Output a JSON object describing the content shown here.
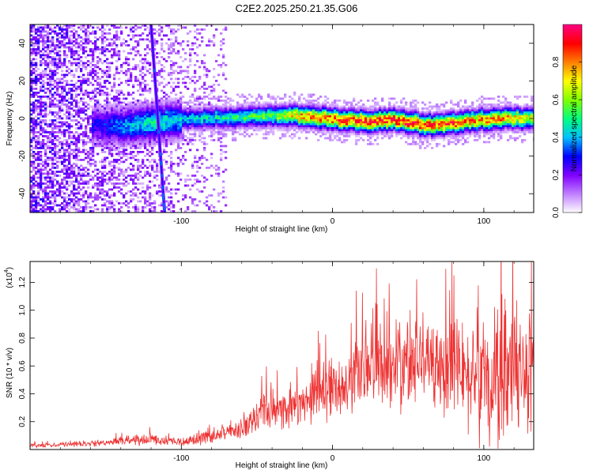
{
  "title": "C2E2.2025.250.21.35.G06",
  "chart_data": [
    {
      "type": "heatmap",
      "xlabel": "Height of straight line (km)",
      "ylabel": "Frequency (Hz)",
      "xlim": [
        -200,
        133
      ],
      "ylim": [
        -50,
        50
      ],
      "xticks": [
        -100,
        0,
        100
      ],
      "xtick_labels": [
        "-100",
        "0",
        "100"
      ],
      "yticks": [
        -40,
        -20,
        0,
        20,
        40
      ],
      "ytick_labels": [
        "-40",
        "-20",
        "0",
        "20",
        "40"
      ],
      "colorbar": {
        "label": "Normalized spectral amplitude",
        "range": [
          0,
          1
        ],
        "ticks": [
          0.0,
          0.2,
          0.4,
          0.6,
          0.8
        ],
        "tick_labels": [
          "0.0",
          "0.2",
          "0.4",
          "0.6",
          "0.8"
        ],
        "colors": [
          "#ffffff",
          "#c080ff",
          "#8000ff",
          "#0000ff",
          "#00c0ff",
          "#00ff80",
          "#80ff00",
          "#ffff00",
          "#ff8000",
          "#ff0000",
          "#ff0080"
        ]
      },
      "ridge": {
        "description_values_height_km": [
          -155,
          -140,
          -120,
          -100,
          -80,
          -60,
          -40,
          -20,
          0,
          20,
          40,
          60,
          80,
          100,
          120,
          133
        ],
        "frequency_hz": [
          -3,
          -4,
          -2,
          0,
          1,
          1,
          2,
          2,
          0,
          -1,
          0,
          -3,
          -2,
          0,
          1,
          0
        ],
        "peak_amplitude": [
          0.3,
          0.4,
          0.5,
          0.45,
          0.5,
          0.55,
          0.6,
          0.85,
          0.9,
          0.95,
          0.95,
          0.95,
          0.9,
          0.85,
          0.8,
          0.7
        ]
      },
      "diagonal_feature": {
        "height_km_at_top": -120,
        "height_km_at_bottom": -111,
        "frequency_top": 50,
        "frequency_bottom": -50
      },
      "noise_region_height_km": [
        -200,
        -70
      ]
    },
    {
      "type": "line",
      "xlabel": "Height of straight line (km)",
      "ylabel": "SNR (10 * v/v)",
      "y_multiplier": "(x10",
      "y_multiplier_exp": "4",
      "y_multiplier_close": ")",
      "xlim": [
        -200,
        133
      ],
      "ylim": [
        0,
        13500
      ],
      "xticks": [
        -100,
        0,
        100
      ],
      "xtick_labels": [
        "-100",
        "0",
        "100"
      ],
      "yticks": [
        2000,
        4000,
        6000,
        8000,
        10000,
        12000
      ],
      "ytick_labels": [
        "0.2",
        "0.4",
        "0.6",
        "0.8",
        "1.0",
        "1.2"
      ],
      "color": "#ee3333",
      "series": [
        {
          "name": "SNR",
          "x": [
            -200,
            -180,
            -160,
            -140,
            -120,
            -100,
            -90,
            -80,
            -70,
            -60,
            -50,
            -40,
            -30,
            -20,
            -10,
            0,
            10,
            20,
            30,
            40,
            50,
            60,
            70,
            80,
            90,
            100,
            110,
            120,
            133
          ],
          "y_mean": [
            300,
            350,
            400,
            600,
            700,
            550,
            700,
            900,
            1200,
            1500,
            2200,
            2800,
            3000,
            3300,
            3800,
            4300,
            5000,
            5400,
            5800,
            6200,
            6500,
            6300,
            6000,
            6000,
            5700,
            5200,
            5300,
            5500,
            5600
          ],
          "y_spread": [
            150,
            150,
            200,
            300,
            400,
            300,
            400,
            500,
            600,
            800,
            1200,
            1500,
            1600,
            1700,
            2000,
            2300,
            2500,
            2800,
            3000,
            3200,
            3300,
            3300,
            3300,
            3500,
            4000,
            4800,
            5000,
            4800,
            4500
          ]
        }
      ]
    }
  ]
}
